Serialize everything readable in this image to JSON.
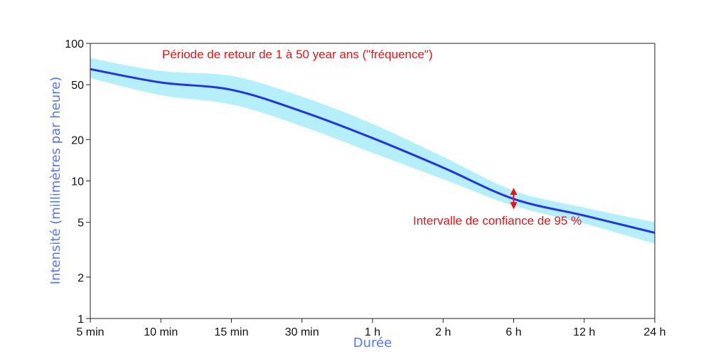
{
  "chart_data": {
    "type": "line",
    "title": "",
    "xlabel": "Durée",
    "ylabel": "Intensité (millimètres par heure)",
    "y_scale": "log",
    "ylim": [
      1,
      100
    ],
    "y_ticks": [
      1,
      2,
      5,
      10,
      20,
      50,
      100
    ],
    "y_tick_labels": [
      "1",
      "2",
      "5",
      "10",
      "20",
      "50",
      "100"
    ],
    "categories": [
      "5 min",
      "10 min",
      "15 min",
      "30 min",
      "1 h",
      "2 h",
      "6 h",
      "12 h",
      "24 h"
    ],
    "grid": false,
    "series": [
      {
        "values": [
          65,
          52,
          46,
          32,
          20.5,
          12.5,
          7.4,
          5.6,
          4.2
        ],
        "lower": [
          56,
          42,
          36,
          25,
          16,
          10.3,
          6.6,
          4.9,
          3.5
        ],
        "upper": [
          78,
          63,
          58,
          41,
          26,
          15,
          8.5,
          6.4,
          5.0
        ]
      }
    ],
    "colors": {
      "line": "#2233ee",
      "band": "#b5f0fa",
      "annotation": "#ee1111",
      "axis_title": "#5577ee"
    },
    "annotations": [
      {
        "text": "Période de retour de 1 à 50 year ans (\"fréquence\")"
      },
      {
        "text": "Intervalle de confiance de 95 %"
      }
    ]
  }
}
